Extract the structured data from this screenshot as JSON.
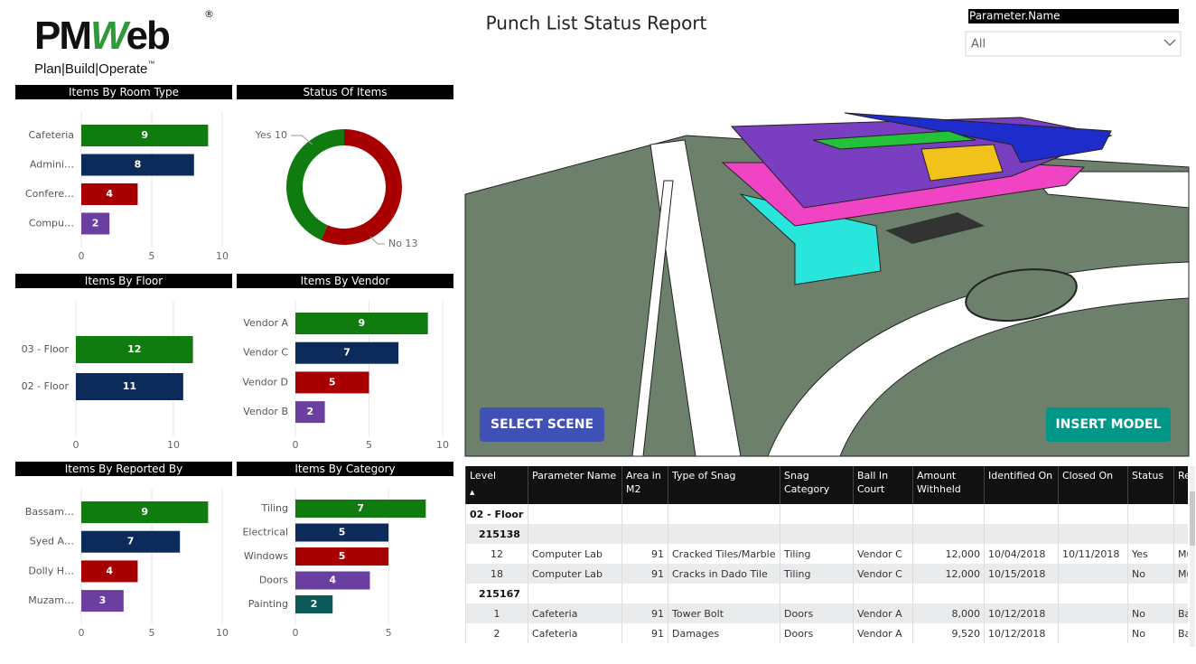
{
  "header": {
    "logo": {
      "name": [
        "PM",
        "W",
        "eb"
      ],
      "mark": "®",
      "tagline": "Plan|Build|Operate",
      "tm": "™"
    },
    "title": "Punch List Status Report"
  },
  "filter": {
    "label": "Parameter.Name",
    "value": "All"
  },
  "buttons": {
    "select_scene": "SELECT SCENE",
    "insert_model": "INSERT MODEL"
  },
  "chart_data": [
    {
      "type": "bar",
      "title": "Items By Room Type",
      "categories": [
        "Cafeteria",
        "Admini…",
        "Confere…",
        "Compu…"
      ],
      "values": [
        9,
        8,
        4,
        2
      ],
      "colors": [
        "#107c10",
        "#0c2a5a",
        "#a80000",
        "#6b3fa0"
      ],
      "xlim": [
        0,
        10
      ],
      "xticks": [
        0,
        5,
        10
      ],
      "grid": true
    },
    {
      "type": "donut",
      "title": "Status Of Items",
      "categories": [
        "Yes",
        "No"
      ],
      "values": [
        10,
        13
      ],
      "colors": [
        "#107c10",
        "#a80000"
      ]
    },
    {
      "type": "bar",
      "title": "Items By Floor",
      "categories": [
        "03 - Floor",
        "02 - Floor"
      ],
      "values": [
        12,
        11
      ],
      "colors": [
        "#107c10",
        "#0c2a5a"
      ],
      "xlim": [
        0,
        15
      ],
      "xticks": [
        0,
        10
      ],
      "grid": true
    },
    {
      "type": "bar",
      "title": "Items By Vendor",
      "categories": [
        "Vendor A",
        "Vendor C",
        "Vendor D",
        "Vendor B"
      ],
      "values": [
        9,
        7,
        5,
        2
      ],
      "colors": [
        "#107c10",
        "#0c2a5a",
        "#a80000",
        "#6b3fa0"
      ],
      "xlim": [
        0,
        10
      ],
      "xticks": [
        0,
        5,
        10
      ],
      "grid": true
    },
    {
      "type": "bar",
      "title": "Items By Reported By",
      "categories": [
        "Bassam…",
        "Syed A…",
        "Dolly H…",
        "Muzam…"
      ],
      "values": [
        9,
        7,
        4,
        3
      ],
      "colors": [
        "#107c10",
        "#0c2a5a",
        "#a80000",
        "#6b3fa0"
      ],
      "xlim": [
        0,
        10
      ],
      "xticks": [
        0,
        5,
        10
      ],
      "grid": true
    },
    {
      "type": "bar",
      "title": "Items By Category",
      "categories": [
        "Tiling",
        "Electrical",
        "Windows",
        "Doors",
        "Painting"
      ],
      "values": [
        7,
        5,
        5,
        4,
        2
      ],
      "colors": [
        "#107c10",
        "#0c2a5a",
        "#a80000",
        "#6b3fa0",
        "#0b5a57"
      ],
      "xlim": [
        0,
        8
      ],
      "xticks": [
        0,
        5
      ],
      "grid": true
    }
  ],
  "table": {
    "columns": [
      "Level",
      "Parameter Name",
      "Area in M2",
      "Type of Snag",
      "Snag Category",
      "Ball In Court",
      "Amount Withheld",
      "Identified On",
      "Closed On",
      "Status",
      "Reported By"
    ],
    "groups": [
      {
        "label": "02 - Floor",
        "subgroups": [
          {
            "label": "215138",
            "rows": [
              [
                12,
                "Computer Lab",
                91,
                "Cracked Tiles/Marble",
                "Tiling",
                "Vendor C",
                "12,000",
                "10/04/2018",
                "10/11/2018",
                "Yes",
                "Muzammil"
              ],
              [
                18,
                "Computer Lab",
                91,
                "Cracks in Dado Tile",
                "Tiling",
                "Vendor C",
                "12,000",
                "10/15/2018",
                null,
                "No",
                "Muzammil"
              ]
            ]
          },
          {
            "label": "215167",
            "rows": [
              [
                1,
                "Cafeteria",
                91,
                "Tower Bolt",
                "Doors",
                "Vendor A",
                "8,000",
                "10/12/2018",
                null,
                "No",
                "Bassam Samman"
              ],
              [
                2,
                "Cafeteria",
                91,
                "Damages",
                "Doors",
                "Vendor A",
                "9,520",
                "10/12/2018",
                null,
                "No",
                "Bassam Samman"
              ]
            ]
          }
        ]
      }
    ]
  }
}
